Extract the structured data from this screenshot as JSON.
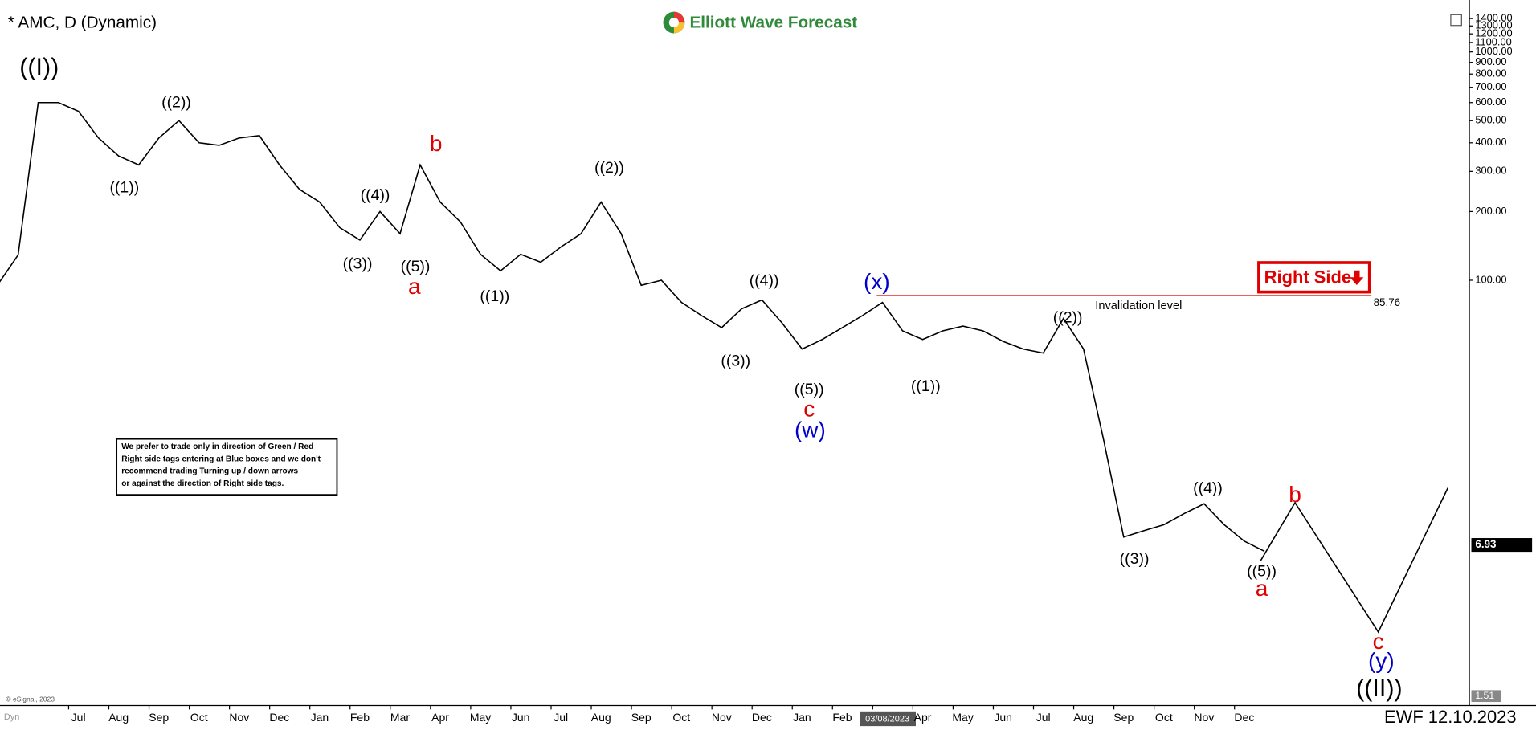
{
  "chart_data": {
    "type": "line",
    "title": "* AMC, D (Dynamic)",
    "brand": "Elliott Wave Forecast",
    "footer": "EWF 12.10.2023",
    "copyright": "© eSignal, 2023",
    "corner_tag": "Dyn",
    "color": "#000000",
    "log_scale": true,
    "grid": false,
    "categories": [
      null,
      null,
      null,
      null,
      "Jul",
      null,
      "Aug",
      null,
      "Sep",
      null,
      "Oct",
      null,
      "Nov",
      null,
      "Dec",
      null,
      "Jan",
      null,
      "Feb",
      null,
      "Mar",
      null,
      "Apr",
      null,
      "May",
      null,
      "Jun",
      null,
      "Jul",
      null,
      "Aug",
      null,
      "Sep",
      null,
      "Oct",
      null,
      "Nov",
      null,
      "Dec",
      null,
      "Jan",
      null,
      "Feb",
      null,
      "03/08/2023",
      null,
      "Apr",
      null,
      "May",
      null,
      "Jun",
      null,
      "Jul",
      null,
      "Aug",
      null,
      "Sep",
      null,
      "Oct",
      null,
      "Nov",
      null,
      "Dec",
      null
    ],
    "values": [
      96,
      129,
      600,
      600,
      550,
      420,
      350,
      320,
      420,
      500,
      400,
      390,
      420,
      430,
      320,
      250,
      220,
      170,
      150,
      200,
      160,
      320,
      220,
      180,
      130,
      110,
      130,
      120,
      140,
      160,
      220,
      160,
      95,
      100,
      80,
      70,
      62,
      75,
      82,
      65,
      50,
      55,
      62,
      70,
      80,
      60,
      55,
      60,
      63,
      60,
      54,
      50,
      48,
      68,
      50,
      20,
      7.5,
      8,
      8.5,
      9.5,
      10.5,
      8.5,
      7.2,
      6.5
    ],
    "ylim": [
      1.4,
      1560
    ],
    "yticks": [
      {
        "value": 100,
        "label": "100.00"
      },
      {
        "value": 200,
        "label": "200.00"
      },
      {
        "value": 300,
        "label": "300.00"
      },
      {
        "value": 400,
        "label": "400.00"
      },
      {
        "value": 500,
        "label": "500.00"
      },
      {
        "value": 600,
        "label": "600.00"
      },
      {
        "value": 700,
        "label": "700.00"
      },
      {
        "value": 800,
        "label": "800.00"
      },
      {
        "value": 900,
        "label": "900.00"
      },
      {
        "value": 1000,
        "label": "1000.00"
      },
      {
        "value": 1100,
        "label": "1100.00"
      },
      {
        "value": 1200,
        "label": "1200.00"
      },
      {
        "value": 1300,
        "label": "1300.00"
      },
      {
        "value": 1400,
        "label": "1400.00"
      }
    ],
    "last_price": 6.93,
    "low_price": 1.51,
    "invalidation_level": 85.76,
    "invalidation_text": "Invalidation level",
    "right_side_tag": "Right Side",
    "note": [
      "We prefer to trade only in direction of Green / Red",
      "Right side tags entering at Blue boxes and we don't",
      "recommend trading Turning up / down arrows",
      "or against the direction of Right side tags."
    ],
    "wave_labels": [
      {
        "text": "((I))",
        "color": "#000000"
      },
      {
        "text": "((1))",
        "color": "#000000"
      },
      {
        "text": "((2))",
        "color": "#000000"
      },
      {
        "text": "b",
        "color": "#e00000"
      },
      {
        "text": "((4))",
        "color": "#000000"
      },
      {
        "text": "((3))",
        "color": "#000000"
      },
      {
        "text": "((5))",
        "color": "#000000"
      },
      {
        "text": "a",
        "color": "#e00000"
      },
      {
        "text": "((1))",
        "color": "#000000"
      },
      {
        "text": "((2))",
        "color": "#000000"
      },
      {
        "text": "((4))",
        "color": "#000000"
      },
      {
        "text": "((3))",
        "color": "#000000"
      },
      {
        "text": "((5))",
        "color": "#000000"
      },
      {
        "text": "c",
        "color": "#e00000"
      },
      {
        "text": "(w)",
        "color": "#0000cc"
      },
      {
        "text": "(x)",
        "color": "#0000cc"
      },
      {
        "text": "((1))",
        "color": "#000000"
      },
      {
        "text": "((2))",
        "color": "#000000"
      },
      {
        "text": "((3))",
        "color": "#000000"
      },
      {
        "text": "((4))",
        "color": "#000000"
      },
      {
        "text": "((5))",
        "color": "#000000"
      },
      {
        "text": "a",
        "color": "#e00000"
      },
      {
        "text": "b",
        "color": "#e00000"
      },
      {
        "text": "c",
        "color": "#e00000"
      },
      {
        "text": "(y)",
        "color": "#0000cc"
      },
      {
        "text": "((II))",
        "color": "#000000"
      }
    ]
  }
}
